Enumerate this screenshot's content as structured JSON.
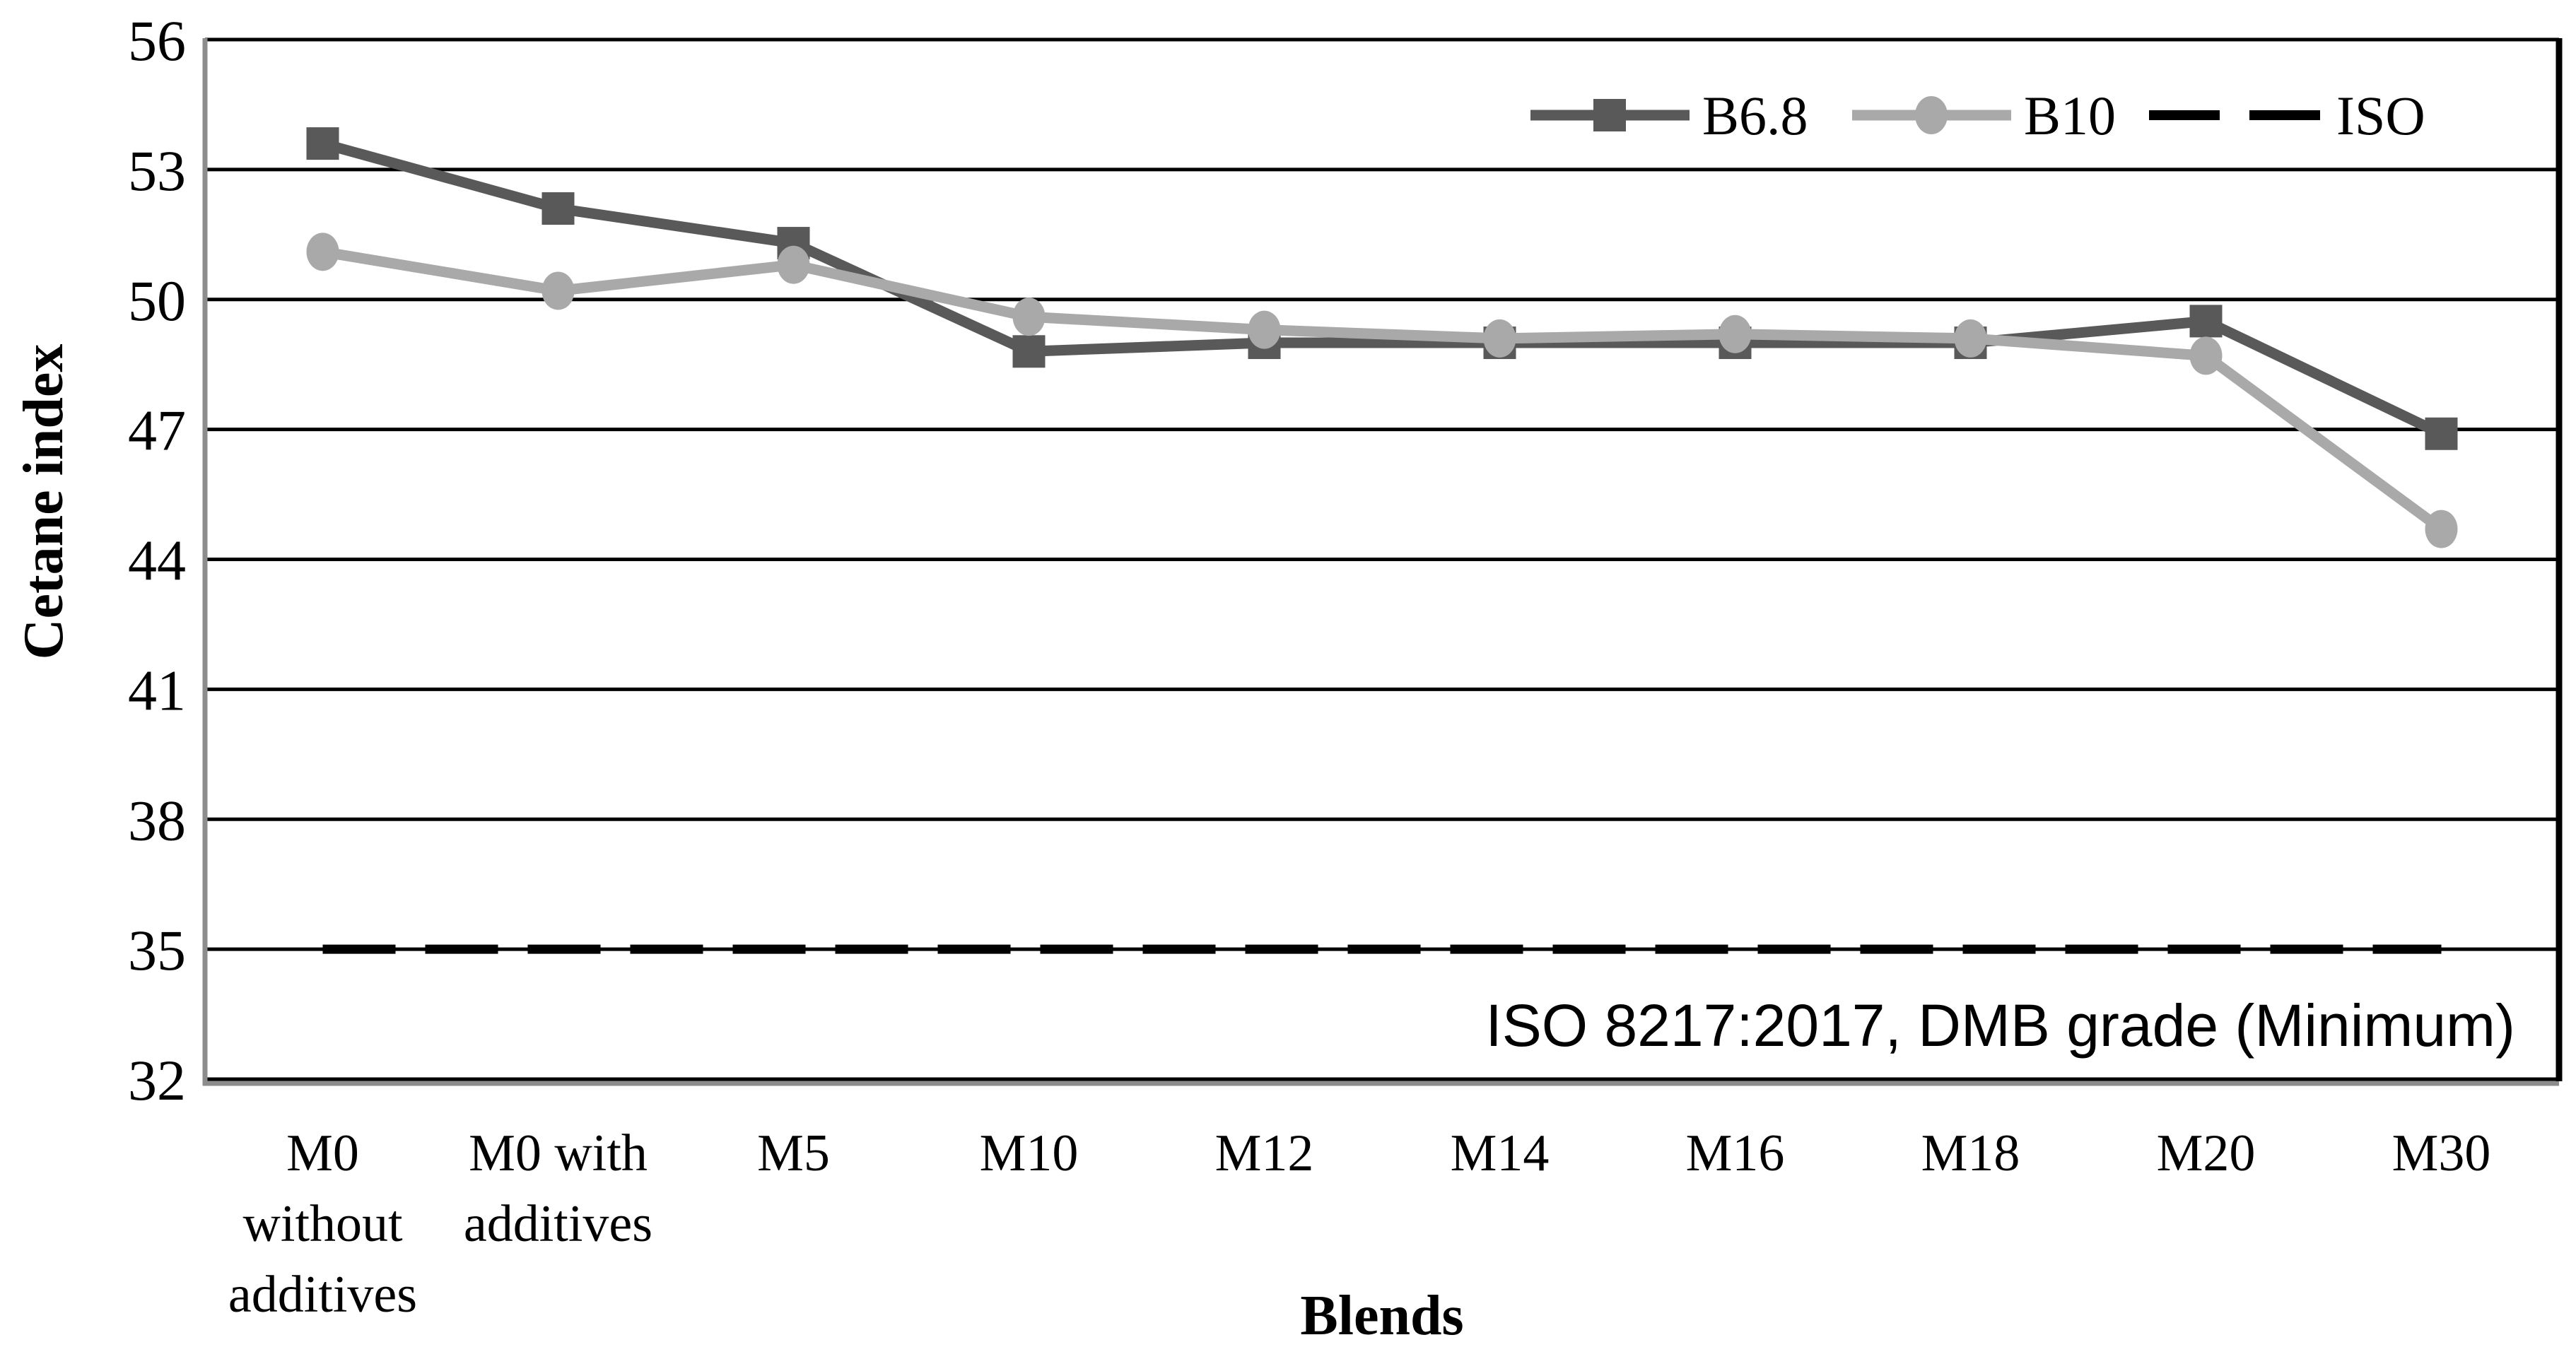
{
  "chart_data": {
    "type": "line",
    "title": "",
    "xlabel": "Blends",
    "ylabel": "Cetane index",
    "ylim": [
      32,
      56
    ],
    "yticks": [
      56,
      53,
      50,
      47,
      44,
      41,
      38,
      35,
      32
    ],
    "grid": "horizontal-black-lines",
    "legend_position": "top-right-inside",
    "categories": [
      "M0 without additives",
      "M0 with additives",
      "M5",
      "M10",
      "M12",
      "M14",
      "M16",
      "M18",
      "M20",
      "M30"
    ],
    "category_label_lines": [
      [
        "M0",
        "without",
        "additives"
      ],
      [
        "M0 with",
        "additives"
      ],
      [
        "M5"
      ],
      [
        "M10"
      ],
      [
        "M12"
      ],
      [
        "M14"
      ],
      [
        "M16"
      ],
      [
        "M18"
      ],
      [
        "M20"
      ],
      [
        "M30"
      ]
    ],
    "series": [
      {
        "name": "B6.8",
        "marker": "square",
        "color": "#595959",
        "dash": "none",
        "values": [
          53.6,
          52.1,
          51.3,
          48.8,
          49.0,
          49.0,
          49.0,
          49.0,
          49.5,
          46.9
        ]
      },
      {
        "name": "B10",
        "marker": "circle",
        "color": "#A9A9A9",
        "dash": "none",
        "values": [
          51.1,
          50.2,
          50.8,
          49.6,
          49.3,
          49.1,
          49.2,
          49.1,
          48.7,
          44.7
        ]
      },
      {
        "name": "ISO",
        "marker": "none",
        "color": "#000000",
        "dash": "dashed",
        "values": [
          35,
          35,
          35,
          35,
          35,
          35,
          35,
          35,
          35,
          35
        ]
      }
    ],
    "annotation": "ISO 8217:2017, DMB grade (Minimum)"
  },
  "colors": {
    "b68_series": "#595959",
    "b10_series": "#A9A9A9",
    "iso_line": "#000000",
    "gridline": "#000000",
    "axis_gray": "#8C8C8C",
    "background": "#FFFFFF"
  }
}
